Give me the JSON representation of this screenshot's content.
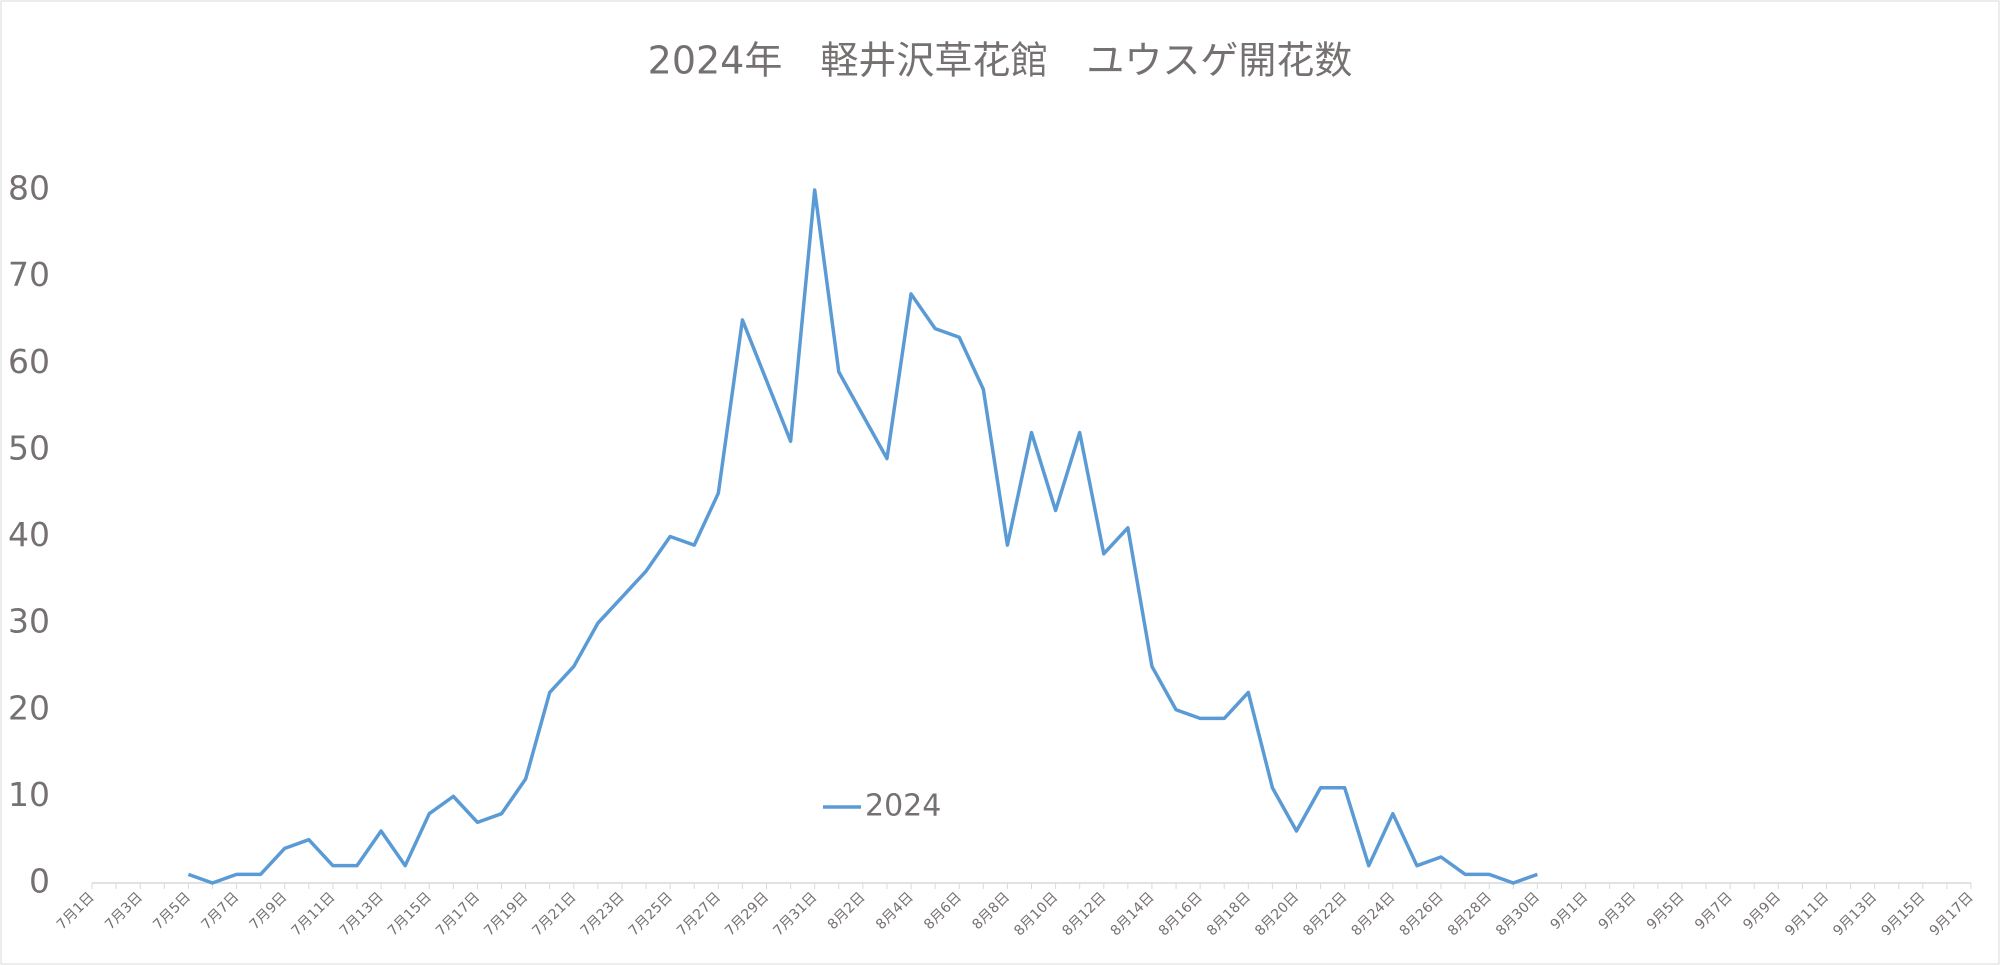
{
  "chart_data": {
    "type": "line",
    "title": "2024年　軽井沢草花館　ユウスゲ開花数",
    "categories": [
      "7月1日",
      null,
      "7月3日",
      null,
      "7月5日",
      null,
      "7月7日",
      null,
      "7月9日",
      null,
      "7月11日",
      null,
      "7月13日",
      null,
      "7月15日",
      null,
      "7月17日",
      null,
      "7月19日",
      null,
      "7月21日",
      null,
      "7月23日",
      null,
      "7月25日",
      null,
      "7月27日",
      null,
      "7月29日",
      null,
      "7月31日",
      null,
      "8月2日",
      null,
      "8月4日",
      null,
      "8月6日",
      null,
      "8月8日",
      null,
      "8月10日",
      null,
      "8月12日",
      null,
      "8月14日",
      null,
      "8月16日",
      null,
      "8月18日",
      null,
      "8月20日",
      null,
      "8月22日",
      null,
      "8月24日",
      null,
      "8月26日",
      null,
      "8月28日",
      null,
      "8月30日",
      null,
      "9月1日",
      null,
      "9月3日",
      null,
      "9月5日",
      null,
      "9月7日",
      null,
      "9月9日",
      null,
      "9月11日",
      null,
      "9月13日",
      null,
      "9月15日",
      null,
      "9月17日"
    ],
    "series": [
      {
        "name": "2024",
        "color": "#5b9bd5",
        "values": [
          null,
          null,
          null,
          null,
          1,
          0,
          1,
          1,
          4,
          5,
          2,
          2,
          6,
          2,
          8,
          10,
          7,
          8,
          12,
          22,
          25,
          30,
          33,
          36,
          40,
          39,
          45,
          65,
          58,
          51,
          80,
          59,
          54,
          49,
          68,
          64,
          63,
          57,
          39,
          52,
          43,
          52,
          38,
          41,
          25,
          20,
          19,
          19,
          22,
          11,
          6,
          11,
          11,
          2,
          8,
          2,
          3,
          1,
          1,
          0,
          1,
          null,
          null,
          null,
          null,
          null,
          null,
          null,
          null,
          null,
          null,
          null,
          null,
          null,
          null,
          null,
          null,
          null,
          null
        ]
      }
    ],
    "ylim": [
      0,
      80
    ],
    "yticks": [
      0,
      10,
      20,
      30,
      40,
      50,
      60,
      70,
      80
    ],
    "grid": false
  }
}
